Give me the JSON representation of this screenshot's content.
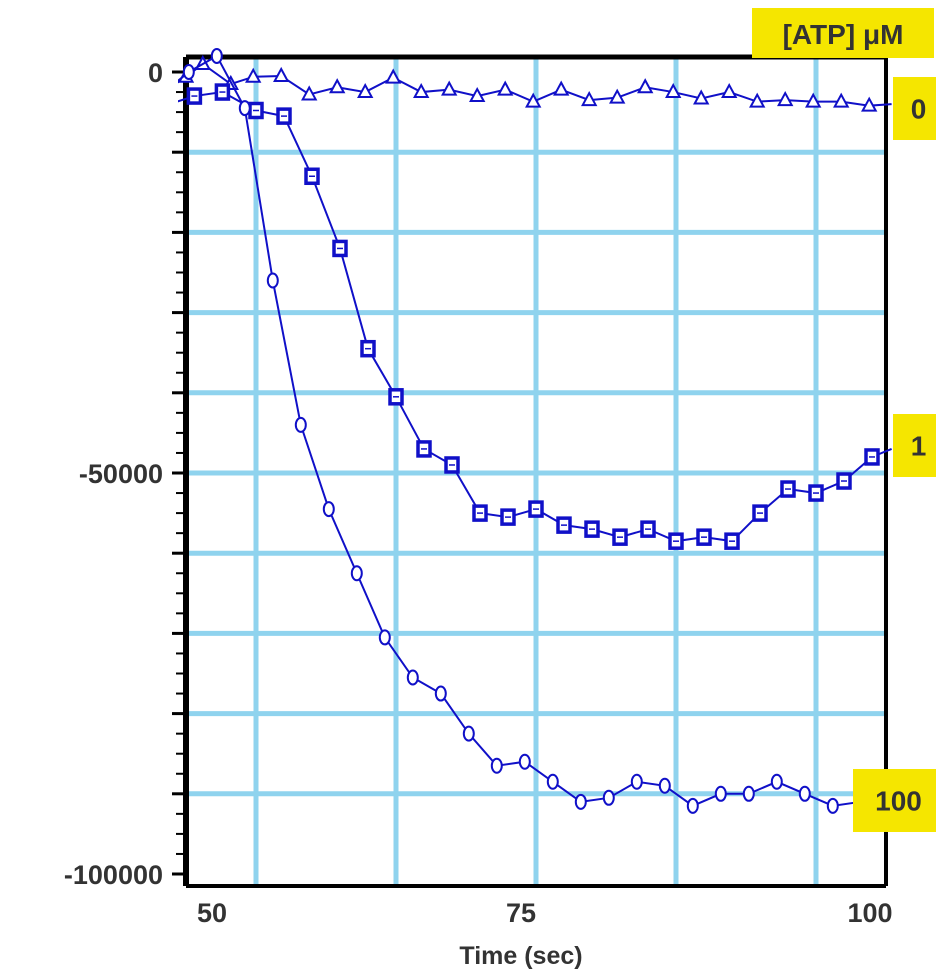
{
  "chart_data": {
    "type": "line",
    "title": "",
    "xlabel": "Time (sec)",
    "ylabel": "",
    "xlim": [
      50,
      100
    ],
    "ylim": [
      -100000,
      0
    ],
    "x_ticks": [
      {
        "value": 50,
        "label": "50"
      },
      {
        "value": 75,
        "label": "75"
      },
      {
        "value": 100,
        "label": "100"
      }
    ],
    "y_ticks": [
      {
        "value": 0,
        "label": "0"
      },
      {
        "value": -50000,
        "label": "-50000"
      },
      {
        "value": -100000,
        "label": "-100000"
      }
    ],
    "grid": true,
    "legend_title": "[ATP] μM",
    "colors": {
      "series": "#1010c8",
      "grid": "#8fd3ee",
      "label_bg": "#f5e600",
      "frame": "#000000"
    },
    "series": [
      {
        "name": "0",
        "marker": "triangle",
        "x": [
          48.8,
          50,
          51.2,
          53.2,
          54.8,
          56.8,
          58.8,
          60.8,
          62.8,
          64.8,
          66.8,
          68.8,
          70.8,
          72.8,
          74.8,
          76.8,
          78.8,
          80.8,
          82.8,
          84.8,
          86.8,
          88.8,
          90.8,
          92.8,
          94.8,
          96.8,
          98.8,
          100.4
        ],
        "y": [
          -2000,
          -600,
          1000,
          -1500,
          -600,
          -500,
          -2800,
          -1900,
          -2500,
          -700,
          -2500,
          -2200,
          -3000,
          -2200,
          -3700,
          -2200,
          -3500,
          -3200,
          -1900,
          -2500,
          -3300,
          -2500,
          -3700,
          -3500,
          -3700,
          -3700,
          -4200,
          -4000
        ]
      },
      {
        "name": "1",
        "marker": "square",
        "x": [
          48.8,
          50.6,
          52.6,
          55.0,
          57.0,
          59.0,
          61.0,
          63.0,
          65.0,
          67.0,
          69.0,
          71.0,
          73.0,
          75.0,
          77.0,
          79.0,
          81.0,
          83.0,
          85.0,
          87.0,
          89.0,
          91.0,
          93.0,
          95.0,
          97.0,
          99.0,
          100.4
        ],
        "y": [
          -4000,
          -3000,
          -2500,
          -4800,
          -5500,
          -13000,
          -22000,
          -34500,
          -40500,
          -47000,
          -49000,
          -55000,
          -55500,
          -54500,
          -56500,
          -57000,
          -58000,
          -57000,
          -58500,
          -58000,
          -58500,
          -55000,
          -52000,
          -52500,
          -51000,
          -48000,
          -47000
        ]
      },
      {
        "name": "100",
        "marker": "circle",
        "x": [
          48.8,
          50.2,
          52.2,
          54.2,
          56.2,
          58.2,
          60.2,
          62.2,
          64.2,
          66.2,
          68.2,
          70.2,
          72.2,
          74.2,
          76.2,
          78.2,
          80.2,
          82.2,
          84.2,
          86.2,
          88.2,
          90.2,
          92.2,
          94.2,
          96.2,
          98.2,
          100.4
        ],
        "y": [
          -2000,
          0,
          2000,
          -4500,
          -26000,
          -44000,
          -54500,
          -62500,
          -70500,
          -75500,
          -77500,
          -82500,
          -86500,
          -86000,
          -88500,
          -91000,
          -90500,
          -88500,
          -89000,
          -91500,
          -90000,
          -90000,
          -88500,
          -90000,
          -91500,
          -91000,
          -90000
        ]
      }
    ]
  }
}
